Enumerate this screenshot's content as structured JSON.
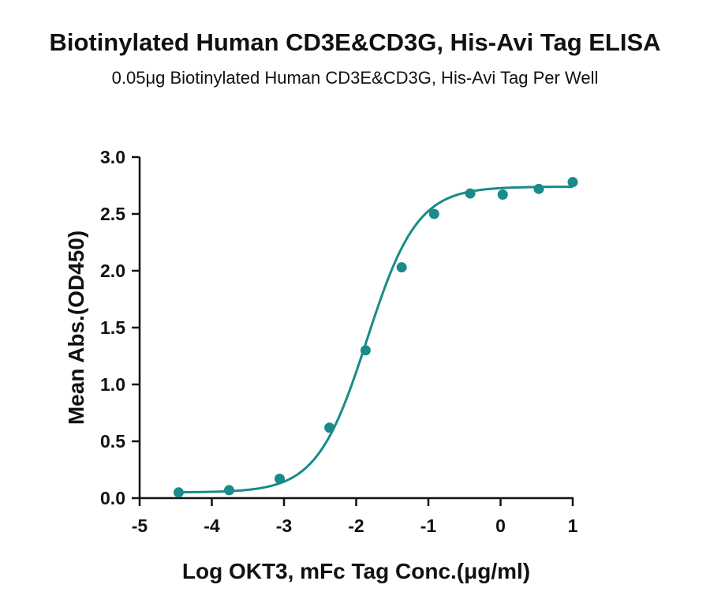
{
  "chart_data": {
    "type": "scatter",
    "title": "Biotinylated Human CD3E&CD3G, His-Avi Tag ELISA",
    "subtitle": "0.05μg Biotinylated Human CD3E&CD3G, His-Avi Tag Per Well",
    "xlabel": "Log OKT3, mFc Tag Conc.(μg/ml)",
    "ylabel": "Mean Abs.(OD450)",
    "xlim": [
      -5,
      1
    ],
    "ylim": [
      0.0,
      3.0
    ],
    "x_ticks": [
      -5,
      -4,
      -3,
      -2,
      -1,
      0,
      1
    ],
    "x_tick_labels": [
      "-5",
      "-4",
      "-3",
      "-2",
      "-1",
      "0",
      "1"
    ],
    "y_ticks": [
      0.0,
      0.5,
      1.0,
      1.5,
      2.0,
      2.5,
      3.0
    ],
    "y_tick_labels": [
      "0.0",
      "0.5",
      "1.0",
      "1.5",
      "2.0",
      "2.5",
      "3.0"
    ],
    "grid": false,
    "color": "#1a8a8a",
    "series": [
      {
        "points": [
          {
            "x": -4.46,
            "y": 0.05
          },
          {
            "x": -3.76,
            "y": 0.07
          },
          {
            "x": -3.06,
            "y": 0.17
          },
          {
            "x": -2.37,
            "y": 0.62
          },
          {
            "x": -1.87,
            "y": 1.3
          },
          {
            "x": -1.37,
            "y": 2.03
          },
          {
            "x": -0.92,
            "y": 2.5
          },
          {
            "x": -0.42,
            "y": 2.68
          },
          {
            "x": 0.03,
            "y": 2.67
          },
          {
            "x": 0.53,
            "y": 2.72
          },
          {
            "x": 1.0,
            "y": 2.78
          }
        ]
      }
    ],
    "fit": {
      "model": "4PL",
      "bottom": 0.05,
      "top": 2.74,
      "log_ec50": -1.85,
      "hill_slope": 1.25
    }
  }
}
